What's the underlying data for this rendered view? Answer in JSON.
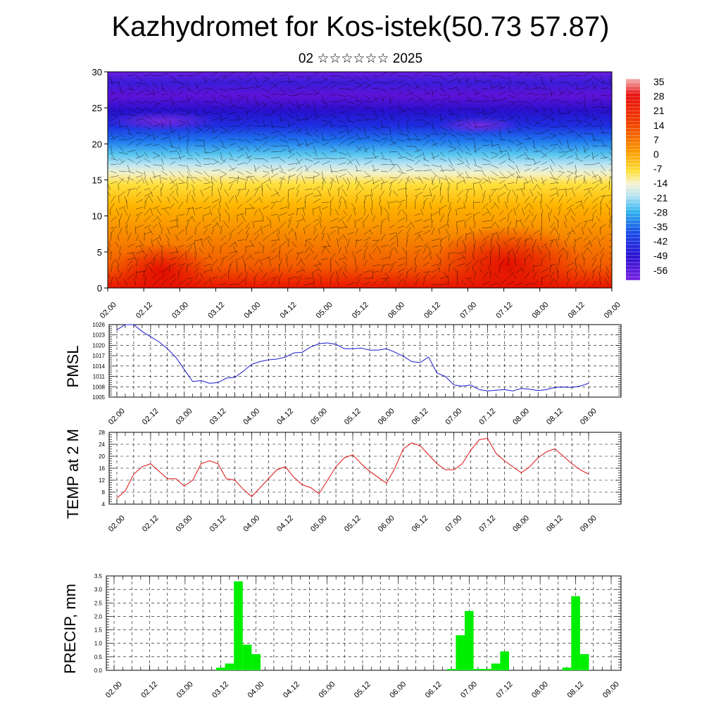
{
  "title": "Kazhydromet for Kos-istek(50.73 57.87)",
  "subtitle": "02 ☆☆☆☆☆☆ 2025",
  "chart_data": [
    {
      "type": "heatmap",
      "title": "",
      "ylim": [
        0,
        30
      ],
      "yticks": [
        "0",
        "5",
        "10",
        "15",
        "20",
        "25",
        "30"
      ],
      "xticks": [
        "02.00",
        "02.12",
        "03.00",
        "03.12",
        "04.00",
        "04.12",
        "05.00",
        "05.12",
        "06.00",
        "06.12",
        "07.00",
        "07.12",
        "08.00",
        "08.12",
        "09.00"
      ],
      "colorbar_labels": [
        "35",
        "28",
        "21",
        "14",
        "7",
        "0",
        "-7",
        "-14",
        "-21",
        "-28",
        "-35",
        "-42",
        "-49",
        "-56"
      ],
      "overlay": "wind barbs",
      "colors": {
        "warm": "#e80000",
        "mid": "#ffd200",
        "cold": "#5f12d8"
      }
    },
    {
      "type": "line",
      "ylabel": "PMSL",
      "ylim": [
        1005,
        1026
      ],
      "yticks": [
        "1005",
        "1008",
        "1011",
        "1014",
        "1017",
        "1020",
        "1023",
        "1026"
      ],
      "xticks": [
        "02.00",
        "02.12",
        "03.00",
        "03.12",
        "04.00",
        "04.12",
        "05.00",
        "05.12",
        "06.00",
        "06.12",
        "07.00",
        "07.12",
        "08.00",
        "08.12",
        "09.00"
      ],
      "series": [
        {
          "color": "#1a1acc",
          "x_start": 0,
          "x_step": 3,
          "values": [
            1024.5,
            1026,
            1026,
            1024,
            1022.5,
            1021,
            1019,
            1016.5,
            1013,
            1009.5,
            1009.8,
            1009,
            1009.2,
            1010.5,
            1010.7,
            1012.5,
            1014.5,
            1015.3,
            1015.8,
            1016,
            1016.6,
            1017.8,
            1018,
            1019.5,
            1020.5,
            1020.7,
            1020.3,
            1019,
            1019,
            1019.2,
            1018.6,
            1018.6,
            1019,
            1018,
            1016.8,
            1015.3,
            1015,
            1016.6,
            1012,
            1011,
            1008.5,
            1008.2,
            1008.5,
            1007.2,
            1006.8,
            1007,
            1007.2,
            1006.8,
            1007.5,
            1007.3,
            1006.9,
            1007.2,
            1007.8,
            1007.9,
            1007.8,
            1008.2,
            1009
          ]
        }
      ]
    },
    {
      "type": "line",
      "ylabel": "TEMP at 2 M",
      "ylim": [
        4,
        28
      ],
      "yticks": [
        "4",
        "8",
        "12",
        "16",
        "20",
        "24",
        "28"
      ],
      "xticks": [
        "02.00",
        "02.12",
        "03.00",
        "03.12",
        "04.00",
        "04.12",
        "05.00",
        "05.12",
        "06.00",
        "06.12",
        "07.00",
        "07.12",
        "08.00",
        "08.12",
        "09.00"
      ],
      "series": [
        {
          "color": "#dd1111",
          "x_start": 0,
          "x_step": 3,
          "values": [
            6,
            8.5,
            14,
            16.5,
            17.5,
            15,
            12.5,
            12.5,
            10,
            12,
            17.5,
            18.5,
            17.5,
            12.5,
            12,
            9,
            6.5,
            9.5,
            12.5,
            15.5,
            16.5,
            13,
            10.5,
            9.5,
            7.5,
            12,
            16.5,
            19.5,
            20.5,
            17.5,
            15,
            13,
            11,
            16,
            22.5,
            24.5,
            23.5,
            20.5,
            17.5,
            15.5,
            15.5,
            17.5,
            22,
            25.5,
            26,
            21,
            18.5,
            16.5,
            14.5,
            16.5,
            19.5,
            21.5,
            22.5,
            20,
            17.5,
            15.5,
            14
          ]
        }
      ]
    },
    {
      "type": "bar",
      "ylabel": "PRECIP, mm",
      "ylim": [
        0,
        3.5
      ],
      "yticks": [
        "0.0",
        "0.5",
        "1.0",
        "1.5",
        "2.0",
        "2.5",
        "3.0",
        "3.5"
      ],
      "xticks": [
        "02.00",
        "02.12",
        "03.00",
        "03.12",
        "04.00",
        "04.12",
        "05.00",
        "05.12",
        "06.00",
        "06.12",
        "07.00",
        "07.12",
        "08.00",
        "08.12",
        "09.00"
      ],
      "series": [
        {
          "color": "#00ee00",
          "x_start": 0,
          "x_step": 3,
          "values": [
            0,
            0,
            0,
            0,
            0,
            0,
            0,
            0,
            0,
            0,
            0,
            0,
            0.1,
            0.25,
            3.3,
            0.95,
            0.6,
            0,
            0,
            0,
            0,
            0,
            0,
            0,
            0,
            0,
            0,
            0,
            0,
            0,
            0,
            0,
            0,
            0,
            0,
            0,
            0,
            0,
            0.05,
            1.3,
            2.2,
            0.05,
            0.05,
            0.25,
            0.7,
            0,
            0,
            0,
            0,
            0,
            0,
            0.1,
            2.75,
            0.6,
            0,
            0,
            0
          ]
        }
      ]
    }
  ]
}
